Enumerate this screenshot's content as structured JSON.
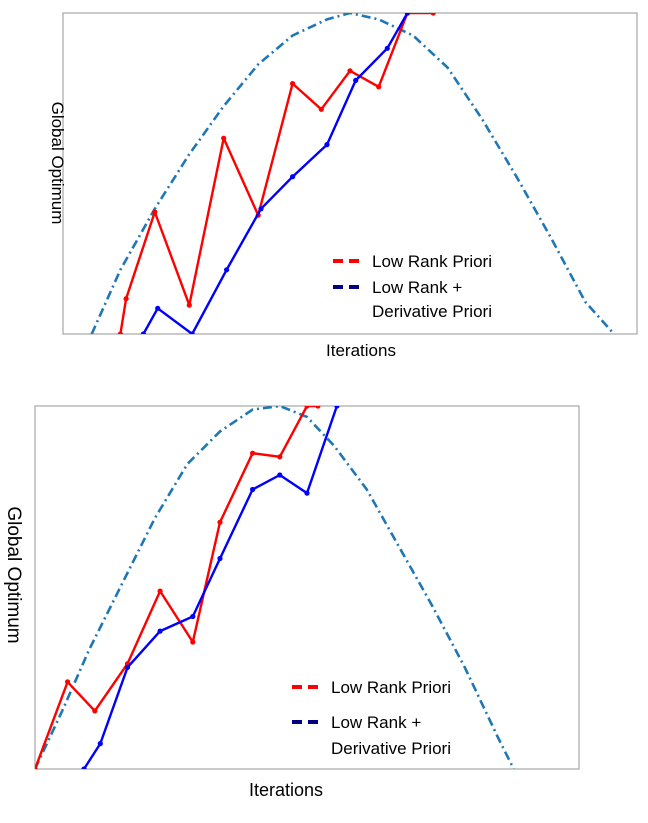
{
  "chart_data": [
    {
      "type": "line",
      "xlabel": "Iterations",
      "ylabel": "Global Optimum",
      "grid": false,
      "legend_placement": "bottom-right",
      "xlim": [
        0,
        1
      ],
      "ylim": [
        0,
        1
      ],
      "legend": [
        {
          "label_lines": [
            "Low Rank Priori"
          ],
          "color": "#ff0000"
        },
        {
          "label_lines": [
            "Low Rank +",
            "Derivative Priori"
          ],
          "color": "#000080"
        }
      ],
      "series": [
        {
          "style": "dash-dot",
          "color": "#1f77b4",
          "x": [
            0.05,
            0.1,
            0.16,
            0.22,
            0.28,
            0.34,
            0.4,
            0.46,
            0.5,
            0.55,
            0.61,
            0.67,
            0.73,
            0.79,
            0.85,
            0.91,
            0.96
          ],
          "y": [
            0.0,
            0.2,
            0.39,
            0.56,
            0.71,
            0.84,
            0.93,
            0.98,
            1.0,
            0.98,
            0.93,
            0.83,
            0.67,
            0.49,
            0.3,
            0.1,
            0.0
          ]
        },
        {
          "style": "solid-markers",
          "color": "#ff0000",
          "x": [
            0.1,
            0.11,
            0.16,
            0.22,
            0.28,
            0.34,
            0.4,
            0.45,
            0.5,
            0.55,
            0.6,
            0.645
          ],
          "y": [
            0.0,
            0.11,
            0.38,
            0.09,
            0.61,
            0.37,
            0.78,
            0.7,
            0.82,
            0.77,
            1.0,
            1.0
          ]
        },
        {
          "style": "solid-markers",
          "color": "#0000ff",
          "x": [
            0.14,
            0.165,
            0.225,
            0.285,
            0.345,
            0.4,
            0.46,
            0.51,
            0.565,
            0.6
          ],
          "y": [
            0.0,
            0.08,
            0.0,
            0.2,
            0.39,
            0.49,
            0.59,
            0.79,
            0.89,
            1.0
          ]
        }
      ]
    },
    {
      "type": "line",
      "xlabel": "Iterations",
      "ylabel": "Global Optimum",
      "grid": false,
      "legend_placement": "bottom-right",
      "xlim": [
        0,
        1
      ],
      "ylim": [
        0,
        1
      ],
      "legend": [
        {
          "label_lines": [
            "Low Rank Priori"
          ],
          "color": "#ff0000"
        },
        {
          "label_lines": [
            "Low Rank +",
            "Derivative Priori"
          ],
          "color": "#000080"
        }
      ],
      "series": [
        {
          "style": "dash-dot",
          "color": "#1f77b4",
          "x": [
            0.0,
            0.05,
            0.1,
            0.16,
            0.22,
            0.28,
            0.34,
            0.4,
            0.45,
            0.5,
            0.55,
            0.61,
            0.67,
            0.73,
            0.79,
            0.85,
            0.88
          ],
          "y": [
            0.0,
            0.16,
            0.33,
            0.51,
            0.69,
            0.84,
            0.93,
            0.99,
            1.0,
            0.97,
            0.89,
            0.77,
            0.61,
            0.45,
            0.28,
            0.09,
            0.0
          ]
        },
        {
          "style": "solid-markers",
          "color": "#ff0000",
          "x": [
            0.0,
            0.06,
            0.11,
            0.17,
            0.23,
            0.29,
            0.34,
            0.4,
            0.45,
            0.5,
            0.52
          ],
          "y": [
            0.0,
            0.24,
            0.16,
            0.29,
            0.49,
            0.35,
            0.68,
            0.87,
            0.86,
            1.0,
            1.0
          ]
        },
        {
          "style": "solid-markers",
          "color": "#0000ff",
          "x": [
            0.09,
            0.12,
            0.17,
            0.23,
            0.29,
            0.34,
            0.4,
            0.45,
            0.5,
            0.555
          ],
          "y": [
            0.0,
            0.07,
            0.28,
            0.38,
            0.42,
            0.58,
            0.77,
            0.81,
            0.76,
            1.0
          ]
        }
      ]
    }
  ]
}
